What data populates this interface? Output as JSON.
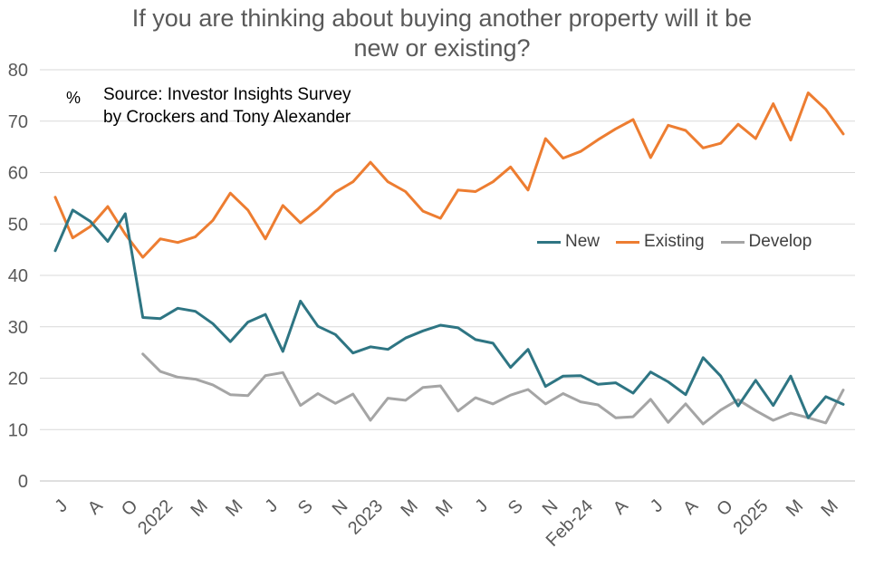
{
  "title": {
    "line1": "If you are thinking about buying another property will it be",
    "line2": "new or existing?"
  },
  "annotation": {
    "unit": "%",
    "line1": "Source: Investor Insights Survey",
    "line2": "by Crockers and Tony Alexander"
  },
  "chart_data": {
    "type": "line",
    "ylim": [
      0,
      80
    ],
    "y_ticks": [
      0,
      10,
      20,
      30,
      40,
      50,
      60,
      70,
      80
    ],
    "grid": "horizontal",
    "legend_position": "center-right",
    "x_tick_labels": [
      "J",
      "A",
      "O",
      "2022",
      "M",
      "M",
      "J",
      "S",
      "N",
      "2023",
      "M",
      "M",
      "J",
      "S",
      "N",
      "Feb-24",
      "A",
      "J",
      "A",
      "O",
      "2025",
      "M",
      "M"
    ],
    "series": [
      {
        "name": "New",
        "color": "#2E7583",
        "values": [
          44.8,
          52.7,
          50.5,
          46.6,
          52.0,
          31.8,
          31.6,
          33.6,
          33.0,
          30.6,
          27.1,
          30.9,
          32.4,
          25.2,
          35.0,
          30.1,
          28.5,
          24.9,
          26.1,
          25.6,
          27.8,
          29.2,
          30.3,
          29.8,
          27.5,
          26.8,
          22.1,
          25.6,
          18.4,
          20.4,
          20.5,
          18.8,
          19.1,
          17.1,
          21.2,
          19.3,
          16.8,
          24.0,
          20.4,
          14.6,
          19.6,
          14.7,
          20.4,
          12.3,
          16.4,
          14.9
        ]
      },
      {
        "name": "Existing",
        "color": "#ED7D31",
        "values": [
          55.2,
          47.3,
          49.5,
          53.4,
          48.0,
          43.5,
          47.1,
          46.4,
          47.5,
          50.7,
          56.0,
          52.7,
          47.1,
          53.6,
          50.2,
          52.9,
          56.2,
          58.2,
          62.0,
          58.2,
          56.3,
          52.5,
          51.1,
          56.6,
          56.3,
          58.2,
          61.1,
          56.6,
          66.6,
          62.8,
          64.1,
          66.4,
          68.5,
          70.3,
          62.9,
          69.2,
          68.2,
          64.8,
          65.7,
          69.4,
          66.6,
          73.4,
          66.3,
          75.5,
          72.3,
          67.5
        ]
      },
      {
        "name": "Develop",
        "color": "#A5A5A5",
        "values": [
          null,
          null,
          null,
          null,
          null,
          24.7,
          21.3,
          20.2,
          19.8,
          18.7,
          16.8,
          16.6,
          20.5,
          21.1,
          14.7,
          17.0,
          15.1,
          16.9,
          11.8,
          16.1,
          15.7,
          18.2,
          18.5,
          13.6,
          16.2,
          15.0,
          16.7,
          17.8,
          15.0,
          17.0,
          15.4,
          14.8,
          12.3,
          12.5,
          15.9,
          11.4,
          15.0,
          11.1,
          13.8,
          15.8,
          13.7,
          11.8,
          13.2,
          12.3,
          11.3,
          17.7
        ]
      }
    ]
  }
}
